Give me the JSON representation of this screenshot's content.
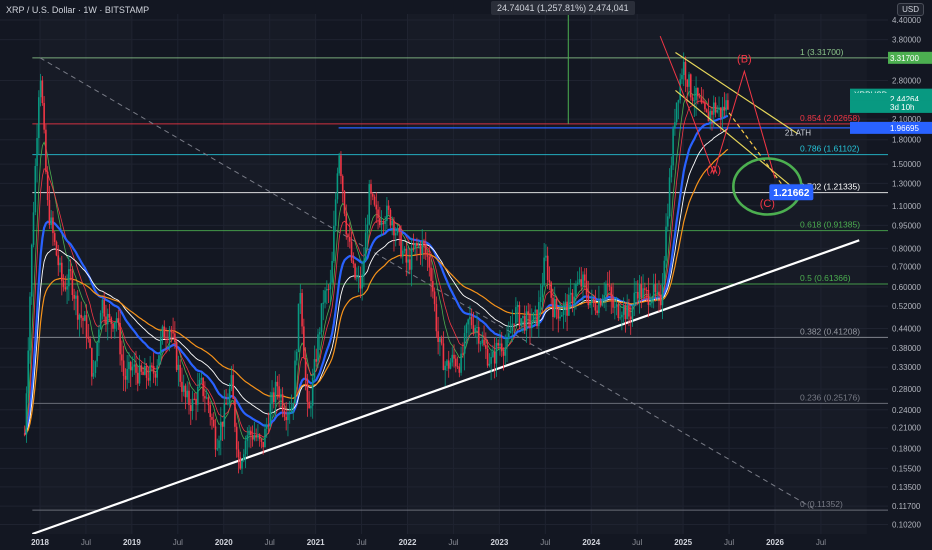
{
  "header": {
    "title": "XRP / U.S. Dollar · 1W · BITSTAMP"
  },
  "measure_tooltip": "24.74041 (1,257.81%) 2,474,041",
  "currency": "USD",
  "chart_data": {
    "type": "candlestick",
    "title": "XRP / U.S. Dollar · 1W · BITSTAMP",
    "y_scale": "log",
    "ylim": [
      0.095,
      4.6
    ],
    "x_start": "2017-11",
    "x_end": "2026-12",
    "y_ticks": [
      "4.40000",
      "3.80000",
      "2.80000",
      "2.10000",
      "1.80000",
      "1.50000",
      "1.30000",
      "1.10000",
      "0.95000",
      "0.80000",
      "0.70000",
      "0.60000",
      "0.52000",
      "0.44000",
      "0.38000",
      "0.33000",
      "0.28000",
      "0.24000",
      "0.21000",
      "0.18000",
      "0.15500",
      "0.13500",
      "0.11700",
      "0.10200"
    ],
    "y_tick_values": [
      4.4,
      3.8,
      2.8,
      2.1,
      1.8,
      1.5,
      1.3,
      1.1,
      0.95,
      0.8,
      0.7,
      0.6,
      0.52,
      0.44,
      0.38,
      0.33,
      0.28,
      0.24,
      0.21,
      0.18,
      0.155,
      0.135,
      0.117,
      0.102
    ],
    "x_ticks": [
      {
        "label": "2018",
        "date": "2018-01"
      },
      {
        "label": "Jul",
        "date": "2018-07"
      },
      {
        "label": "2019",
        "date": "2019-01"
      },
      {
        "label": "Jul",
        "date": "2019-07"
      },
      {
        "label": "2020",
        "date": "2020-01"
      },
      {
        "label": "Jul",
        "date": "2020-07"
      },
      {
        "label": "2021",
        "date": "2021-01"
      },
      {
        "label": "Jul",
        "date": "2021-07"
      },
      {
        "label": "2022",
        "date": "2022-01"
      },
      {
        "label": "Jul",
        "date": "2022-07"
      },
      {
        "label": "2023",
        "date": "2023-01"
      },
      {
        "label": "Jul",
        "date": "2023-07"
      },
      {
        "label": "2024",
        "date": "2024-01"
      },
      {
        "label": "Jul",
        "date": "2024-07"
      },
      {
        "label": "2025",
        "date": "2025-01"
      },
      {
        "label": "Jul",
        "date": "2025-07"
      },
      {
        "label": "2026",
        "date": "2026-01"
      },
      {
        "label": "Jul",
        "date": "2026-07"
      }
    ],
    "price_path": [
      [
        "2017-11",
        0.2
      ],
      [
        "2017-12",
        0.9
      ],
      [
        "2018-01",
        3.2
      ],
      [
        "2018-02",
        1.1
      ],
      [
        "2018-03",
        0.8
      ],
      [
        "2018-04",
        0.6
      ],
      [
        "2018-05",
        0.65
      ],
      [
        "2018-06",
        0.5
      ],
      [
        "2018-07",
        0.45
      ],
      [
        "2018-08",
        0.3
      ],
      [
        "2018-09",
        0.55
      ],
      [
        "2018-10",
        0.46
      ],
      [
        "2018-11",
        0.48
      ],
      [
        "2018-12",
        0.3
      ],
      [
        "2019-01",
        0.33
      ],
      [
        "2019-02",
        0.31
      ],
      [
        "2019-03",
        0.31
      ],
      [
        "2019-04",
        0.32
      ],
      [
        "2019-05",
        0.42
      ],
      [
        "2019-06",
        0.45
      ],
      [
        "2019-07",
        0.33
      ],
      [
        "2019-08",
        0.26
      ],
      [
        "2019-09",
        0.25
      ],
      [
        "2019-10",
        0.29
      ],
      [
        "2019-11",
        0.25
      ],
      [
        "2019-12",
        0.19
      ],
      [
        "2020-01",
        0.23
      ],
      [
        "2020-02",
        0.29
      ],
      [
        "2020-03",
        0.16
      ],
      [
        "2020-04",
        0.2
      ],
      [
        "2020-05",
        0.2
      ],
      [
        "2020-06",
        0.18
      ],
      [
        "2020-07",
        0.24
      ],
      [
        "2020-08",
        0.29
      ],
      [
        "2020-09",
        0.24
      ],
      [
        "2020-10",
        0.25
      ],
      [
        "2020-11",
        0.6
      ],
      [
        "2020-12",
        0.22
      ],
      [
        "2021-01",
        0.35
      ],
      [
        "2021-02",
        0.55
      ],
      [
        "2021-03",
        0.6
      ],
      [
        "2021-04",
        1.75
      ],
      [
        "2021-05",
        0.95
      ],
      [
        "2021-06",
        0.65
      ],
      [
        "2021-07",
        0.6
      ],
      [
        "2021-08",
        1.2
      ],
      [
        "2021-09",
        1.0
      ],
      [
        "2021-10",
        1.05
      ],
      [
        "2021-11",
        1.0
      ],
      [
        "2021-12",
        0.83
      ],
      [
        "2022-01",
        0.7
      ],
      [
        "2022-02",
        0.8
      ],
      [
        "2022-03",
        0.82
      ],
      [
        "2022-04",
        0.7
      ],
      [
        "2022-05",
        0.4
      ],
      [
        "2022-06",
        0.33
      ],
      [
        "2022-07",
        0.35
      ],
      [
        "2022-08",
        0.34
      ],
      [
        "2022-09",
        0.47
      ],
      [
        "2022-10",
        0.45
      ],
      [
        "2022-11",
        0.38
      ],
      [
        "2022-12",
        0.34
      ],
      [
        "2023-01",
        0.4
      ],
      [
        "2023-02",
        0.38
      ],
      [
        "2023-03",
        0.5
      ],
      [
        "2023-04",
        0.47
      ],
      [
        "2023-05",
        0.46
      ],
      [
        "2023-06",
        0.48
      ],
      [
        "2023-07",
        0.75
      ],
      [
        "2023-08",
        0.52
      ],
      [
        "2023-09",
        0.5
      ],
      [
        "2023-10",
        0.52
      ],
      [
        "2023-11",
        0.6
      ],
      [
        "2023-12",
        0.62
      ],
      [
        "2024-01",
        0.52
      ],
      [
        "2024-02",
        0.54
      ],
      [
        "2024-03",
        0.62
      ],
      [
        "2024-04",
        0.5
      ],
      [
        "2024-05",
        0.52
      ],
      [
        "2024-06",
        0.48
      ],
      [
        "2024-07",
        0.6
      ],
      [
        "2024-08",
        0.56
      ],
      [
        "2024-09",
        0.58
      ],
      [
        "2024-10",
        0.52
      ],
      [
        "2024-11",
        1.1
      ],
      [
        "2024-12",
        2.3
      ],
      [
        "2025-01",
        3.2
      ],
      [
        "2025-02",
        2.6
      ],
      [
        "2025-03",
        2.4
      ],
      [
        "2025-04",
        2.1
      ],
      [
        "2025-05",
        2.3
      ],
      [
        "2025-06",
        2.2
      ],
      [
        "2025-07",
        2.44
      ]
    ],
    "fib_levels": [
      {
        "ratio": "1",
        "label": "1 (3.31700)",
        "value": 3.317,
        "color": "#8bc48a"
      },
      {
        "ratio": "0.854",
        "label": "0.854 (2.02658)",
        "value": 2.02658,
        "color": "#f23645"
      },
      {
        "ratio": "0.786",
        "label": "0.786 (1.61102)",
        "value": 1.61102,
        "color": "#26c6da"
      },
      {
        "ratio": "0.702",
        "label": "0.702 (1.21335)",
        "value": 1.21335,
        "color": "#ffffff"
      },
      {
        "ratio": "0.618",
        "label": "0.618 (0.91385)",
        "value": 0.91385,
        "color": "#4caf50"
      },
      {
        "ratio": "0.5",
        "label": "0.5 (0.61366)",
        "value": 0.61366,
        "color": "#4caf50"
      },
      {
        "ratio": "0.382",
        "label": "0.382 (0.41208)",
        "value": 0.41208,
        "color": "#9598a1"
      },
      {
        "ratio": "0.236",
        "label": "0.236 (0.25176)",
        "value": 0.25176,
        "color": "#787b86"
      },
      {
        "ratio": "0",
        "label": "0 (0.11352)",
        "value": 0.11352,
        "color": "#787b86"
      }
    ],
    "price_badges": [
      {
        "text": "3.31700",
        "value": 3.317,
        "color": "#4caf50"
      },
      {
        "text": "XRPUSD",
        "value": 2.52,
        "color": "#089981"
      },
      {
        "text": "2.44264",
        "value": 2.44264,
        "color": "#089981"
      },
      {
        "text": "3d 10h",
        "value": 2.3,
        "color": "#089981"
      },
      {
        "text": "1.96695",
        "value": 1.96695,
        "color": "#2962ff"
      }
    ],
    "marker_badge": {
      "text": "1.21662",
      "value": 1.21662,
      "date": "2025-12",
      "color": "#2962ff"
    },
    "annotations": [
      {
        "text": "21 ATH",
        "date": "2026-04",
        "value": 1.86
      },
      {
        "text": "(A)",
        "date": "2025-05",
        "value": 1.4
      },
      {
        "text": "(B)",
        "date": "2025-09",
        "value": 3.2
      },
      {
        "text": "(C)",
        "date": "2025-12",
        "value": 1.09
      }
    ],
    "ath_line": {
      "from": "2021-04",
      "value": 1.96695
    },
    "trendline": {
      "from": [
        "2017-12",
        0.095
      ],
      "to": [
        "2026-12",
        0.85
      ]
    },
    "diagonal_dashed": {
      "from": [
        "2018-01",
        3.317
      ],
      "to": [
        "2026-06",
        0.115
      ]
    },
    "colors": {
      "background": "#131722",
      "up": "#089981",
      "down": "#f23645",
      "ema_fast": "#2962ff",
      "ema_slow": "#f7931a",
      "ema_white": "#ffffff"
    }
  }
}
